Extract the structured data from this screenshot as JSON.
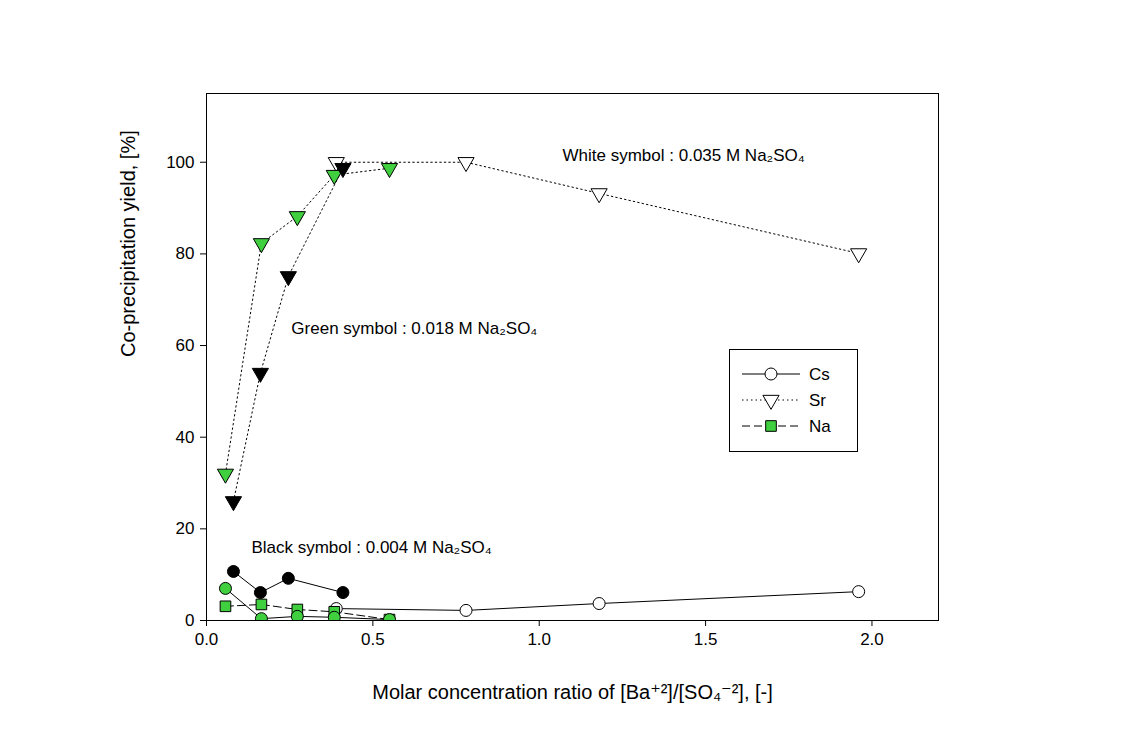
{
  "chart_data": {
    "type": "line",
    "xlabel": "Molar concentration ratio of [Ba⁺²]/[SO₄⁻²], [-]",
    "ylabel": "Co-precipitation yield, [%]",
    "xlim": [
      0,
      2.2
    ],
    "ylim": [
      0,
      115
    ],
    "xticks": [
      {
        "value": 0,
        "label": "0.0"
      },
      0.5,
      {
        "value": 1,
        "label": "1.0"
      },
      1.5,
      {
        "value": 2,
        "label": "2.0"
      }
    ],
    "yticks": [
      0,
      20,
      40,
      60,
      80,
      100
    ],
    "legend": "right",
    "annotations": [
      "White symbol : 0.035 M Na₂SO₄",
      "Green symbol : 0.018 M Na₂SO₄",
      "Black symbol : 0.004 M Na₂SO₄"
    ],
    "series": [
      {
        "name": "Cs",
        "color": "#ffffff",
        "marker": "circle",
        "line_style": "solid",
        "x": [
          0.39,
          0.78,
          1.18,
          1.96
        ],
        "values": [
          2.6,
          2.2,
          3.7,
          6.3
        ]
      },
      {
        "name": "Sr",
        "color": "#ffffff",
        "marker": "triangle-down",
        "line_style": "dotted",
        "x": [
          0.39,
          0.78,
          1.18,
          1.96
        ],
        "values": [
          100,
          100,
          93.2,
          80.1
        ]
      },
      {
        "name": "Na",
        "color": "#3fcf3f",
        "marker": "square",
        "line_style": "dashed",
        "x": [
          0.057,
          0.165,
          0.273,
          0.384,
          0.55
        ],
        "values": [
          3.1,
          3.5,
          2.4,
          1.9,
          0.2
        ]
      },
      {
        "name": "Cs",
        "color": "#3fcf3f",
        "marker": "circle",
        "line_style": "solid",
        "x": [
          0.057,
          0.165,
          0.273,
          0.384,
          0.55
        ],
        "values": [
          7,
          0.4,
          0.9,
          0.7,
          0.2
        ]
      },
      {
        "name": "Sr",
        "color": "#3fcf3f",
        "marker": "triangle-down",
        "line_style": "dotted",
        "x": [
          0.057,
          0.165,
          0.273,
          0.384,
          0.55
        ],
        "values": [
          32,
          82.3,
          88.2,
          97.2,
          98.7
        ]
      },
      {
        "name": "Cs",
        "color": "#000000",
        "marker": "circle",
        "line_style": "solid",
        "x": [
          0.081,
          0.162,
          0.246,
          0.41
        ],
        "values": [
          10.7,
          6.1,
          9.2,
          6.1
        ]
      },
      {
        "name": "Sr",
        "color": "#000000",
        "marker": "triangle-down",
        "line_style": "dotted",
        "x": [
          0.081,
          0.162,
          0.246,
          0.41
        ],
        "values": [
          26,
          54,
          75.1,
          98.7
        ]
      }
    ]
  }
}
